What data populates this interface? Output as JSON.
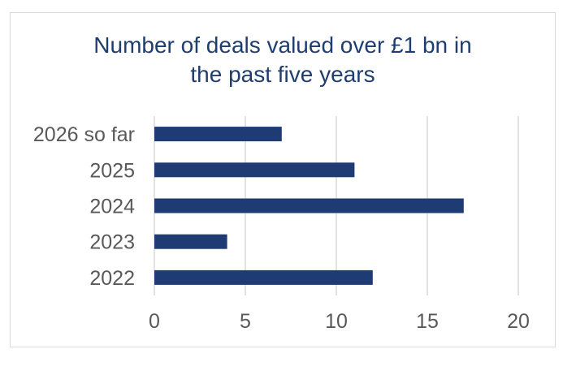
{
  "chart_data": {
    "type": "bar",
    "orientation": "horizontal",
    "title_lines": [
      "Number of deals valued over £1 bn in",
      "the past five years"
    ],
    "categories": [
      "2026 so far",
      "2025",
      "2024",
      "2023",
      "2022"
    ],
    "values": [
      7,
      11,
      17,
      4,
      12
    ],
    "xlim": [
      0,
      20
    ],
    "xticks": [
      0,
      5,
      10,
      15,
      20
    ],
    "grid": "vertical",
    "legend": "none",
    "bar_color": "#1f3b73",
    "grid_color": "#d9d9d9",
    "text_color": "#595959",
    "title_color": "#1f3d6e"
  }
}
